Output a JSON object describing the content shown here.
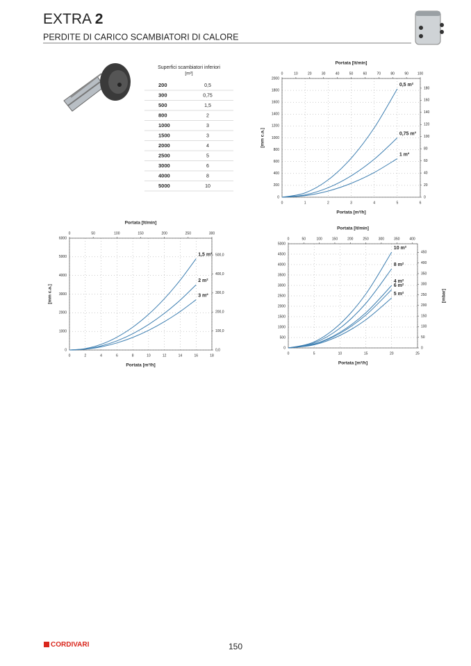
{
  "header": {
    "title": "EXTRA",
    "title_bold": "2",
    "subtitle": "PERDITE DI CARICO SCAMBIATORI DI CALORE"
  },
  "table": {
    "header": "Superfici scambiatori inferiori",
    "unit": "[m²]",
    "rows": [
      [
        "200",
        "0,5"
      ],
      [
        "300",
        "0,75"
      ],
      [
        "500",
        "1,5"
      ],
      [
        "800",
        "2"
      ],
      [
        "1000",
        "3"
      ],
      [
        "1500",
        "3"
      ],
      [
        "2000",
        "4"
      ],
      [
        "2500",
        "5"
      ],
      [
        "3000",
        "6"
      ],
      [
        "4000",
        "8"
      ],
      [
        "5000",
        "10"
      ]
    ]
  },
  "chart_data": [
    {
      "type": "line",
      "x_label": "Portata [m³/h]",
      "x2_label": "Portata [lt/min]",
      "y_label": "[mm c.a.]",
      "grid": true,
      "x": [
        0,
        1,
        2,
        3,
        4,
        5
      ],
      "xlim": [
        0,
        6
      ],
      "xticks": [
        0,
        1,
        2,
        3,
        4,
        5,
        6
      ],
      "x2lim": [
        0,
        100
      ],
      "x2ticks": [
        0,
        10,
        20,
        30,
        40,
        50,
        60,
        70,
        80,
        90,
        100
      ],
      "ylim": [
        0,
        2000
      ],
      "yticks": [
        0,
        200,
        400,
        600,
        800,
        1000,
        1200,
        1400,
        1600,
        1800,
        2000
      ],
      "y2lim": [
        0,
        196
      ],
      "y2ticks": [
        0,
        20,
        40,
        60,
        80,
        100,
        120,
        140,
        160,
        180
      ],
      "series": [
        {
          "name": "0,5 m²",
          "color": "#3b7db0",
          "values": [
            0,
            73,
            292,
            657,
            1168,
            1825
          ]
        },
        {
          "name": "0,75 m²",
          "color": "#3b7db0",
          "values": [
            0,
            40,
            160,
            360,
            640,
            1000
          ]
        },
        {
          "name": "1 m²",
          "color": "#3b7db0",
          "values": [
            0,
            26,
            104,
            234,
            416,
            650
          ]
        }
      ]
    },
    {
      "type": "line",
      "x_label": "Portata [m³/h]",
      "x2_label": "Portata [lt/min]",
      "y_label": "[mm c.a.]",
      "grid": true,
      "x": [
        0,
        2,
        4,
        6,
        8,
        10,
        12,
        14,
        16
      ],
      "xlim": [
        0,
        18
      ],
      "xticks": [
        0,
        2,
        4,
        6,
        8,
        10,
        12,
        14,
        16,
        18
      ],
      "x2lim": [
        0,
        300
      ],
      "x2ticks": [
        0,
        50,
        100,
        150,
        200,
        250,
        300
      ],
      "ylim": [
        0,
        6000
      ],
      "yticks": [
        0,
        1000,
        2000,
        3000,
        4000,
        5000,
        6000
      ],
      "y2lim": [
        0,
        588
      ],
      "y2ticks": [
        {
          "value": 0,
          "label": "0,0"
        },
        {
          "value": 100,
          "label": "100,0"
        },
        {
          "value": 200,
          "label": "200,0"
        },
        {
          "value": 300,
          "label": "300,0"
        },
        {
          "value": 400,
          "label": "400,0"
        },
        {
          "value": 500,
          "label": "500,0"
        }
      ],
      "series": [
        {
          "name": "1,5 m²",
          "color": "#3b7db0",
          "values": [
            0,
            77,
            306,
            689,
            1225,
            1914,
            2756,
            3752,
            4900
          ]
        },
        {
          "name": "2 m²",
          "color": "#3b7db0",
          "values": [
            0,
            55,
            219,
            492,
            875,
            1367,
            1969,
            2680,
            3500
          ]
        },
        {
          "name": "3 m²",
          "color": "#3b7db0",
          "values": [
            0,
            42,
            169,
            380,
            675,
            1055,
            1519,
            2067,
            2700
          ]
        }
      ]
    },
    {
      "type": "line",
      "x_label": "Portata [m³/h]",
      "x2_label": "Portata [lt/min]",
      "y2_label": "[mbar]",
      "grid": true,
      "x": [
        0,
        5,
        10,
        15,
        20
      ],
      "xlim": [
        0,
        25
      ],
      "xticks": [
        0,
        5,
        10,
        15,
        20,
        25
      ],
      "x2lim": [
        0,
        416.7
      ],
      "x2ticks": [
        0,
        50,
        100,
        150,
        200,
        250,
        300,
        350,
        400
      ],
      "ylim": [
        0,
        5000
      ],
      "yticks": [
        0,
        500,
        1000,
        1500,
        2000,
        2500,
        3000,
        3500,
        4000,
        4500,
        5000
      ],
      "y2lim": [
        0,
        490.5
      ],
      "y2ticks": [
        0,
        50,
        100,
        150,
        200,
        250,
        300,
        350,
        400,
        450
      ],
      "series": [
        {
          "name": "10 m²",
          "color": "#3b7db0",
          "values": [
            0,
            288,
            1150,
            2588,
            4600
          ]
        },
        {
          "name": "8 m²",
          "color": "#3b7db0",
          "values": [
            0,
            238,
            950,
            2138,
            3800
          ]
        },
        {
          "name": "4 m²",
          "color": "#3b7db0",
          "values": [
            0,
            188,
            750,
            1688,
            3000
          ]
        },
        {
          "name": "6 m²",
          "color": "#3b7db0",
          "values": [
            0,
            175,
            700,
            1575,
            2800
          ]
        },
        {
          "name": "5 m²",
          "color": "#3b7db0",
          "values": [
            0,
            150,
            600,
            1350,
            2400
          ]
        }
      ]
    }
  ],
  "footer": {
    "brand": "CORDIVARI",
    "page": "150"
  }
}
